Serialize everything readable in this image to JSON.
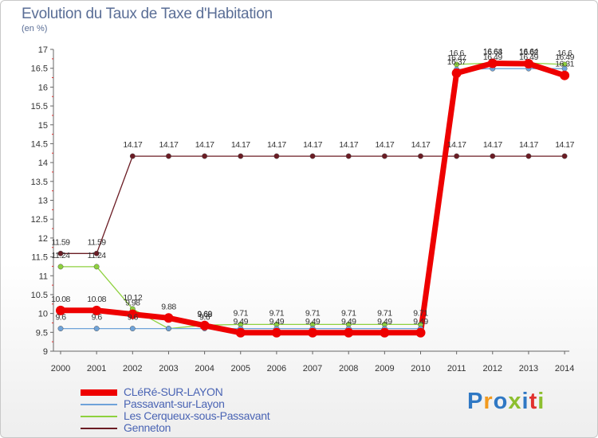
{
  "title": "Evolution du Taux de Taxe d'Habitation",
  "unit": "(en %)",
  "logo": {
    "text": "Proxiti",
    "colors": [
      "#2f78c4",
      "#f29a1f",
      "#2f78c4",
      "#8dbf2f",
      "#2f78c4",
      "#e0312d",
      "#8dbf2f"
    ]
  },
  "chart_data": {
    "type": "line",
    "x": [
      "2000",
      "2001",
      "2002",
      "2003",
      "2004",
      "2005",
      "2006",
      "2007",
      "2008",
      "2009",
      "2010",
      "2011",
      "2012",
      "2013",
      "2014"
    ],
    "ylim": [
      9,
      17
    ],
    "yticks": [
      "9",
      "9.5",
      "10",
      "10.5",
      "11",
      "11.5",
      "12",
      "12.5",
      "13",
      "13.5",
      "14",
      "14.5",
      "15",
      "15.5",
      "16",
      "16.5",
      "17"
    ],
    "grid": false,
    "legend": "bottom-left",
    "series": [
      {
        "name": "Genneton",
        "color": "#6b1c24",
        "values": [
          11.59,
          11.59,
          14.17,
          14.17,
          14.17,
          14.17,
          14.17,
          14.17,
          14.17,
          14.17,
          14.17,
          14.17,
          14.17,
          14.17,
          14.17
        ],
        "labels": [
          "11.59",
          "11.59",
          "14.17",
          "14.17",
          "14.17",
          "14.17",
          "14.17",
          "14.17",
          "14.17",
          "14.17",
          "14.17",
          "14.17",
          "14.17",
          "14.17",
          "14.17"
        ]
      },
      {
        "name": "Les Cerqueux-sous-Passavant",
        "color": "#8ed13e",
        "values": [
          11.24,
          11.24,
          10.12,
          9.6,
          9.69,
          9.71,
          9.71,
          9.71,
          9.71,
          9.71,
          9.71,
          16.6,
          16.64,
          16.64,
          16.6
        ],
        "labels": [
          "11.24",
          "11.24",
          "10.12",
          "",
          "9.69",
          "9.71",
          "9.71",
          "9.71",
          "9.71",
          "9.71",
          "9.71",
          "16.6",
          "16.64",
          "16.64",
          "16.6"
        ]
      },
      {
        "name": "Passavant-sur-Layon",
        "color": "#6fa3d9",
        "values": [
          9.6,
          9.6,
          9.6,
          9.6,
          9.6,
          9.6,
          9.6,
          9.6,
          9.6,
          9.6,
          9.6,
          16.47,
          16.49,
          16.49,
          16.49
        ],
        "labels": [
          "9.6",
          "9.6",
          "9.6",
          "",
          "9.6",
          "",
          "",
          "",
          "",
          "",
          "",
          "16.47",
          "16.49",
          "16.49",
          "16.49"
        ]
      },
      {
        "name": "CLéRé-SUR-LAYON",
        "color": "#ee0000",
        "values": [
          10.08,
          10.08,
          9.98,
          9.88,
          9.68,
          9.49,
          9.49,
          9.49,
          9.49,
          9.49,
          9.49,
          16.37,
          16.63,
          16.62,
          16.31
        ],
        "labels": [
          "10.08",
          "10.08",
          "9.98",
          "9.88",
          "9.68",
          "9.49",
          "9.49",
          "9.49",
          "9.49",
          "9.49",
          "9.49",
          "16.37",
          "16.63",
          "16.62",
          "16.31"
        ]
      }
    ]
  }
}
